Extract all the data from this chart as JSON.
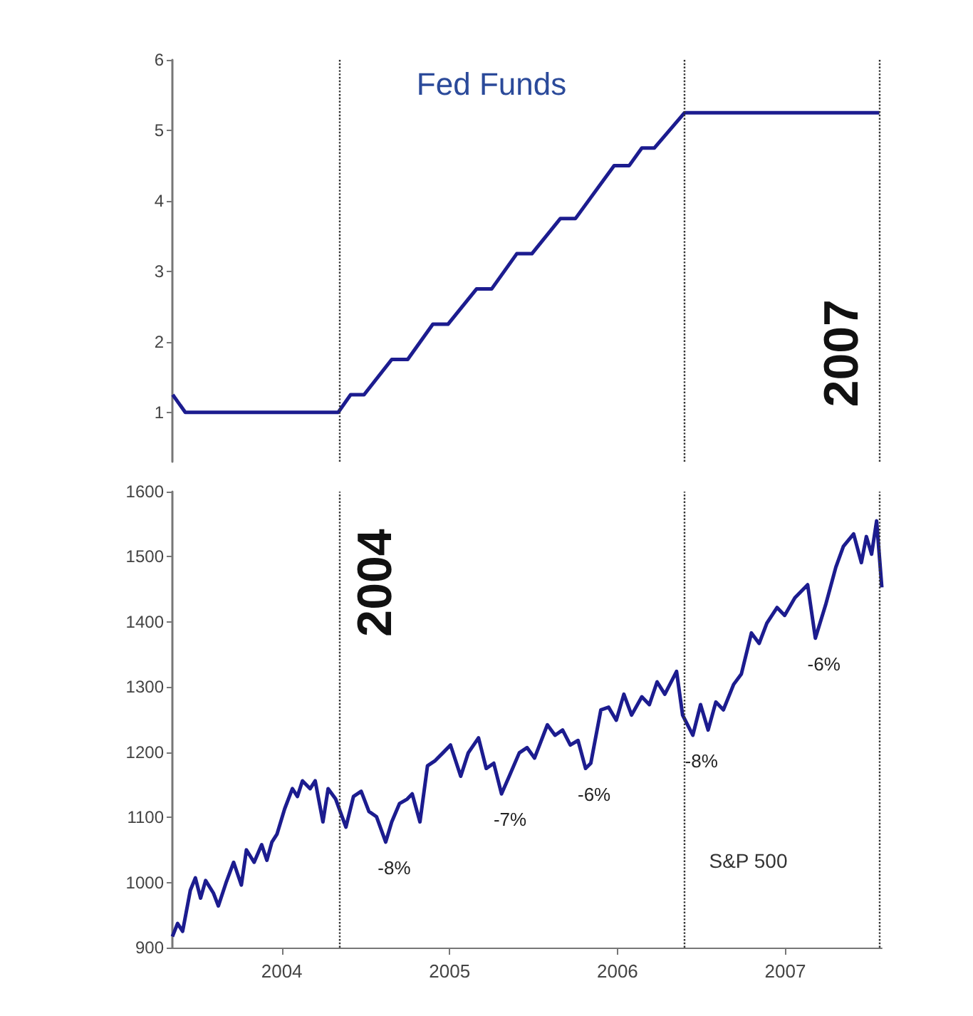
{
  "chart_data": [
    {
      "type": "line",
      "title": "Fed Funds",
      "xlim": [
        2003.348,
        2007.575
      ],
      "xticks": [
        2004,
        2005,
        2006,
        2007
      ],
      "ylim": [
        0.3,
        6
      ],
      "yticks": [
        1,
        2,
        3,
        4,
        5,
        6
      ],
      "tick_labels": "y",
      "series": [
        {
          "color": "#1c1c8f",
          "x": [
            2003.35,
            2003.425,
            2004.336,
            2004.41,
            2004.49,
            2004.655,
            2004.75,
            2004.9,
            2004.99,
            2005.16,
            2005.25,
            2005.4,
            2005.49,
            2005.66,
            2005.75,
            2005.98,
            2006.07,
            2006.145,
            2006.22,
            2006.4,
            2007.56
          ],
          "values": [
            1.25,
            1.0,
            1.0,
            1.25,
            1.25,
            1.75,
            1.75,
            2.25,
            2.25,
            2.75,
            2.75,
            3.25,
            3.25,
            3.75,
            3.75,
            4.5,
            4.5,
            4.75,
            4.75,
            5.25,
            5.25
          ]
        }
      ],
      "ref_lines": [
        {
          "axis": "x",
          "value": 2004.336,
          "color": "#333333",
          "line_style": "dotted"
        },
        {
          "axis": "x",
          "value": 2006.4,
          "color": "#333333",
          "line_style": "dotted"
        },
        {
          "axis": "x",
          "value": 2007.56,
          "color": "#333333",
          "line_style": "dotted"
        }
      ],
      "annotations": [
        {
          "text": "2007",
          "x": 2007.56
        }
      ]
    },
    {
      "type": "line",
      "xlim": [
        2003.348,
        2007.575
      ],
      "xticks": [
        2004,
        2005,
        2006,
        2007
      ],
      "ylim": [
        900,
        1600
      ],
      "yticks": [
        900,
        1000,
        1100,
        1200,
        1300,
        1400,
        1500,
        1600
      ],
      "series": [
        {
          "color": "#1c1c8f",
          "x": [
            2003.348,
            2003.379,
            2003.409,
            2003.455,
            2003.485,
            2003.516,
            2003.546,
            2003.592,
            2003.622,
            2003.667,
            2003.713,
            2003.759,
            2003.789,
            2003.835,
            2003.88,
            2003.911,
            2003.941,
            2003.971,
            2004.017,
            2004.063,
            2004.093,
            2004.123,
            2004.169,
            2004.199,
            2004.245,
            2004.276,
            2004.321,
            2004.382,
            2004.427,
            2004.473,
            2004.519,
            2004.564,
            2004.619,
            2004.655,
            2004.701,
            2004.747,
            2004.777,
            2004.823,
            2004.868,
            2004.914,
            2004.96,
            2005.005,
            2005.066,
            2005.111,
            2005.172,
            2005.218,
            2005.263,
            2005.309,
            2005.355,
            2005.415,
            2005.461,
            2005.506,
            2005.582,
            2005.628,
            2005.673,
            2005.719,
            2005.765,
            2005.81,
            2005.841,
            2005.901,
            2005.947,
            2005.993,
            2006.038,
            2006.084,
            2006.145,
            2006.19,
            2006.236,
            2006.282,
            2006.352,
            2006.388,
            2006.449,
            2006.495,
            2006.54,
            2006.586,
            2006.631,
            2006.692,
            2006.738,
            2006.798,
            2006.844,
            2006.89,
            2006.951,
            2006.996,
            2007.057,
            2007.133,
            2007.179,
            2007.24,
            2007.301,
            2007.346,
            2007.407,
            2007.453,
            2007.483,
            2007.514,
            2007.544,
            2007.575
          ],
          "values": [
            917,
            937,
            925,
            988,
            1007,
            976,
            1003,
            984,
            964,
            999,
            1031,
            996,
            1050,
            1031,
            1058,
            1034,
            1062,
            1074,
            1113,
            1144,
            1132,
            1156,
            1144,
            1156,
            1093,
            1144,
            1128,
            1085,
            1132,
            1140,
            1109,
            1101,
            1062,
            1093,
            1121,
            1128,
            1136,
            1093,
            1179,
            1187,
            1199,
            1211,
            1163,
            1199,
            1222,
            1175,
            1183,
            1136,
            1163,
            1199,
            1207,
            1191,
            1242,
            1226,
            1234,
            1211,
            1218,
            1175,
            1183,
            1265,
            1269,
            1249,
            1289,
            1257,
            1285,
            1273,
            1308,
            1289,
            1324,
            1257,
            1226,
            1273,
            1234,
            1277,
            1265,
            1304,
            1320,
            1383,
            1367,
            1398,
            1422,
            1410,
            1437,
            1457,
            1375,
            1426,
            1484,
            1516,
            1535,
            1491,
            1531,
            1504,
            1555,
            1453
          ]
        }
      ],
      "ref_lines": [
        {
          "axis": "x",
          "value": 2004.336,
          "color": "#333333",
          "line_style": "dotted"
        },
        {
          "axis": "x",
          "value": 2006.4,
          "color": "#333333",
          "line_style": "dotted"
        },
        {
          "axis": "x",
          "value": 2007.56,
          "color": "#333333",
          "line_style": "dotted"
        }
      ],
      "annotations": [
        {
          "text": "2004",
          "x": 2004.336
        },
        {
          "text": "-8%",
          "x": 2004.619,
          "y": 1062
        },
        {
          "text": "-7%",
          "x": 2005.309,
          "y": 1136
        },
        {
          "text": "-6%",
          "x": 2005.81,
          "y": 1175
        },
        {
          "text": "-8%",
          "x": 2006.449,
          "y": 1226
        },
        {
          "text": "-6%",
          "x": 2007.179,
          "y": 1375
        },
        "S&P 500"
      ]
    }
  ]
}
